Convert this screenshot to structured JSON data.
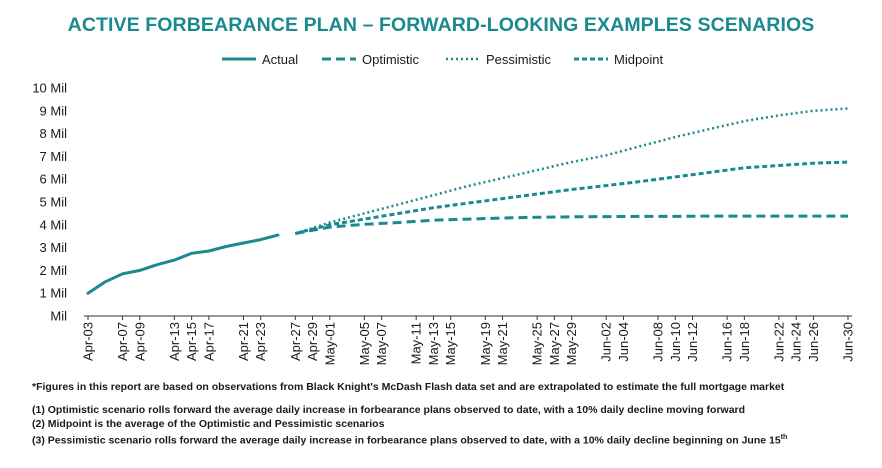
{
  "title": "ACTIVE FORBEARANCE PLAN – FORWARD-LOOKING EXAMPLES SCENARIOS",
  "legend": [
    {
      "label": "Actual",
      "style": "solid"
    },
    {
      "label": "Optimistic",
      "style": "dashed"
    },
    {
      "label": "Pessimistic",
      "style": "dotted"
    },
    {
      "label": "Midpoint",
      "style": "short-dashed"
    }
  ],
  "colors": {
    "title": "#1a8a8e",
    "series": "#1a8a8e",
    "axis": "#333333"
  },
  "notes": {
    "source": "*Figures in this report are based on observations from Black Knight's McDash Flash data set and are extrapolated to estimate the full mortgage market",
    "n1": "(1) Optimistic scenario rolls forward the average daily increase in forbearance plans observed to date, with a 10% daily decline moving forward",
    "n2": "(2) Midpoint is the average of the Optimistic and Pessimistic scenarios",
    "n3": "(3) Pessimistic scenario rolls forward the average daily increase in forbearance plans observed to date, with a 10% daily decline beginning on June 15",
    "n3_sup": "th"
  },
  "chart_data": {
    "type": "line",
    "title": "ACTIVE FORBEARANCE PLAN – FORWARD-LOOKING EXAMPLES SCENARIOS",
    "y_tick_labels": [
      "Mil",
      "1 Mil",
      "2 Mil",
      "3 Mil",
      "4 Mil",
      "5 Mil",
      "6 Mil",
      "7 Mil",
      "8 Mil",
      "9 Mil",
      "10 Mil"
    ],
    "ylim": [
      0,
      10
    ],
    "y_unit": "Mil",
    "x_tick_labels": [
      "Apr-03",
      "Apr-07",
      "Apr-09",
      "Apr-13",
      "Apr-15",
      "Apr-17",
      "Apr-21",
      "Apr-23",
      "Apr-27",
      "Apr-29",
      "May-01",
      "May-05",
      "May-07",
      "May-11",
      "May-13",
      "May-15",
      "May-19",
      "May-21",
      "May-25",
      "May-27",
      "May-29",
      "Jun-02",
      "Jun-04",
      "Jun-08",
      "Jun-10",
      "Jun-12",
      "Jun-16",
      "Jun-18",
      "Jun-22",
      "Jun-24",
      "Jun-26",
      "Jun-30"
    ],
    "x_tick_days": [
      0,
      4,
      6,
      10,
      12,
      14,
      18,
      20,
      24,
      26,
      28,
      32,
      34,
      38,
      40,
      42,
      46,
      48,
      52,
      54,
      56,
      60,
      62,
      66,
      68,
      70,
      74,
      76,
      80,
      82,
      84,
      88
    ],
    "x_start": "Apr-03",
    "grid": false,
    "legend_position": "top",
    "series": [
      {
        "name": "Actual",
        "style": "solid",
        "x": [
          "Apr-03",
          "Apr-05",
          "Apr-07",
          "Apr-09",
          "Apr-11",
          "Apr-13",
          "Apr-15",
          "Apr-17",
          "Apr-19",
          "Apr-21",
          "Apr-23",
          "Apr-25"
        ],
        "values": [
          1.0,
          1.5,
          1.85,
          2.0,
          2.25,
          2.45,
          2.75,
          2.85,
          3.05,
          3.2,
          3.35,
          3.55
        ]
      },
      {
        "name": "Optimistic",
        "style": "dashed",
        "x": [
          "Apr-27",
          "May-01",
          "May-05",
          "May-09",
          "May-13",
          "May-17",
          "May-21",
          "May-25",
          "May-29",
          "Jun-02",
          "Jun-06",
          "Jun-10",
          "Jun-14",
          "Jun-18",
          "Jun-22",
          "Jun-26",
          "Jun-30"
        ],
        "values": [
          3.62,
          3.9,
          4.02,
          4.1,
          4.2,
          4.25,
          4.3,
          4.33,
          4.35,
          4.36,
          4.37,
          4.37,
          4.38,
          4.38,
          4.38,
          4.38,
          4.38
        ]
      },
      {
        "name": "Pessimistic",
        "style": "dotted",
        "x": [
          "Apr-27",
          "May-01",
          "May-05",
          "May-09",
          "May-13",
          "May-17",
          "May-21",
          "May-25",
          "May-29",
          "Jun-02",
          "Jun-06",
          "Jun-10",
          "Jun-14",
          "Jun-18",
          "Jun-22",
          "Jun-26",
          "Jun-30"
        ],
        "values": [
          3.62,
          4.1,
          4.5,
          4.9,
          5.3,
          5.7,
          6.05,
          6.4,
          6.75,
          7.05,
          7.45,
          7.85,
          8.2,
          8.55,
          8.8,
          9.0,
          9.1
        ]
      },
      {
        "name": "Midpoint",
        "style": "short-dashed",
        "x": [
          "Apr-27",
          "May-01",
          "May-05",
          "May-09",
          "May-13",
          "May-17",
          "May-21",
          "May-25",
          "May-29",
          "Jun-02",
          "Jun-06",
          "Jun-10",
          "Jun-14",
          "Jun-18",
          "Jun-22",
          "Jun-26",
          "Jun-30"
        ],
        "values": [
          3.62,
          4.0,
          4.25,
          4.5,
          4.75,
          4.95,
          5.15,
          5.35,
          5.55,
          5.72,
          5.9,
          6.1,
          6.3,
          6.5,
          6.6,
          6.7,
          6.75
        ]
      }
    ]
  }
}
